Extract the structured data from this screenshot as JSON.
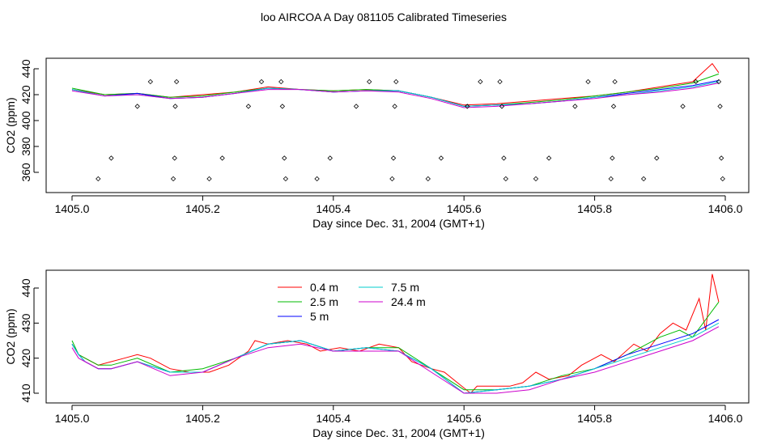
{
  "title": "loo AIRCOA A  Day 081105  Calibrated Timeseries",
  "colors": {
    "axis": "#000000",
    "series": [
      "#ff0000",
      "#00bb00",
      "#0000ff",
      "#00cccc",
      "#cc00cc"
    ]
  },
  "chart_data": [
    {
      "type": "line",
      "xlabel": "Day since Dec. 31, 2004 (GMT+1)",
      "ylabel": "CO2 (ppm)",
      "xlim": [
        1405.0,
        1406.0
      ],
      "ylim": [
        345,
        448
      ],
      "xticks": [
        "1405.0",
        "1405.2",
        "1405.4",
        "1405.6",
        "1405.8",
        "1406.0"
      ],
      "yticks": [
        "360",
        "380",
        "400",
        "420",
        "440"
      ],
      "series": [
        {
          "name": "0.4 m",
          "x": [
            1405.0,
            1405.05,
            1405.1,
            1405.15,
            1405.2,
            1405.25,
            1405.3,
            1405.35,
            1405.4,
            1405.45,
            1405.5,
            1405.55,
            1405.6,
            1405.65,
            1405.7,
            1405.75,
            1405.8,
            1405.85,
            1405.9,
            1405.95,
            1405.98,
            1405.99
          ],
          "y": [
            424,
            420,
            421,
            418,
            420,
            422,
            426,
            424,
            423,
            424,
            423,
            418,
            412,
            413,
            415,
            417,
            419,
            422,
            426,
            430,
            444,
            437
          ]
        },
        {
          "name": "2.5 m",
          "x": [
            1405.0,
            1405.05,
            1405.1,
            1405.15,
            1405.2,
            1405.25,
            1405.3,
            1405.35,
            1405.4,
            1405.45,
            1405.5,
            1405.55,
            1405.6,
            1405.65,
            1405.7,
            1405.75,
            1405.8,
            1405.85,
            1405.9,
            1405.95,
            1405.99
          ],
          "y": [
            425,
            420,
            421,
            418,
            419,
            422,
            425,
            424,
            423,
            424,
            423,
            418,
            411,
            412,
            414,
            416,
            419,
            422,
            425,
            429,
            436
          ]
        },
        {
          "name": "5 m",
          "x": [
            1405.0,
            1405.05,
            1405.1,
            1405.15,
            1405.2,
            1405.25,
            1405.3,
            1405.35,
            1405.4,
            1405.45,
            1405.5,
            1405.55,
            1405.6,
            1405.65,
            1405.7,
            1405.75,
            1405.8,
            1405.85,
            1405.9,
            1405.95,
            1405.99
          ],
          "y": [
            424,
            419,
            421,
            417,
            418,
            421,
            425,
            424,
            422,
            423,
            423,
            418,
            411,
            412,
            413,
            415,
            418,
            421,
            424,
            427,
            431
          ]
        },
        {
          "name": "7.5 m",
          "x": [
            1405.0,
            1405.05,
            1405.1,
            1405.15,
            1405.2,
            1405.25,
            1405.3,
            1405.35,
            1405.4,
            1405.45,
            1405.5,
            1405.55,
            1405.6,
            1405.65,
            1405.7,
            1405.75,
            1405.8,
            1405.85,
            1405.9,
            1405.95,
            1405.99
          ],
          "y": [
            424,
            419,
            420,
            417,
            418,
            421,
            425,
            424,
            422,
            423,
            423,
            418,
            411,
            412,
            413,
            415,
            418,
            420,
            423,
            426,
            430
          ]
        },
        {
          "name": "24.4 m",
          "x": [
            1405.0,
            1405.05,
            1405.1,
            1405.15,
            1405.2,
            1405.25,
            1405.3,
            1405.35,
            1405.4,
            1405.45,
            1405.5,
            1405.55,
            1405.6,
            1405.65,
            1405.7,
            1405.75,
            1405.8,
            1405.85,
            1405.9,
            1405.95,
            1405.99
          ],
          "y": [
            423,
            419,
            420,
            417,
            418,
            421,
            424,
            424,
            422,
            423,
            422,
            417,
            410,
            411,
            413,
            415,
            417,
            420,
            422,
            425,
            429
          ]
        }
      ],
      "scatter_points": [
        {
          "x": 1405.04,
          "y": 355
        },
        {
          "x": 1405.06,
          "y": 371
        },
        {
          "x": 1405.1,
          "y": 411
        },
        {
          "x": 1405.12,
          "y": 430
        },
        {
          "x": 1405.155,
          "y": 355
        },
        {
          "x": 1405.157,
          "y": 371
        },
        {
          "x": 1405.158,
          "y": 411
        },
        {
          "x": 1405.16,
          "y": 430
        },
        {
          "x": 1405.21,
          "y": 355
        },
        {
          "x": 1405.23,
          "y": 371
        },
        {
          "x": 1405.27,
          "y": 411
        },
        {
          "x": 1405.29,
          "y": 430
        },
        {
          "x": 1405.32,
          "y": 430
        },
        {
          "x": 1405.322,
          "y": 411
        },
        {
          "x": 1405.325,
          "y": 371
        },
        {
          "x": 1405.327,
          "y": 355
        },
        {
          "x": 1405.375,
          "y": 355
        },
        {
          "x": 1405.395,
          "y": 371
        },
        {
          "x": 1405.435,
          "y": 411
        },
        {
          "x": 1405.455,
          "y": 430
        },
        {
          "x": 1405.49,
          "y": 355
        },
        {
          "x": 1405.492,
          "y": 371
        },
        {
          "x": 1405.494,
          "y": 411
        },
        {
          "x": 1405.496,
          "y": 430
        },
        {
          "x": 1405.545,
          "y": 355
        },
        {
          "x": 1405.565,
          "y": 371
        },
        {
          "x": 1405.605,
          "y": 411
        },
        {
          "x": 1405.625,
          "y": 430
        },
        {
          "x": 1405.655,
          "y": 430
        },
        {
          "x": 1405.658,
          "y": 411
        },
        {
          "x": 1405.661,
          "y": 371
        },
        {
          "x": 1405.664,
          "y": 355
        },
        {
          "x": 1405.71,
          "y": 355
        },
        {
          "x": 1405.73,
          "y": 371
        },
        {
          "x": 1405.77,
          "y": 411
        },
        {
          "x": 1405.79,
          "y": 430
        },
        {
          "x": 1405.825,
          "y": 355
        },
        {
          "x": 1405.827,
          "y": 371
        },
        {
          "x": 1405.829,
          "y": 411
        },
        {
          "x": 1405.831,
          "y": 430
        },
        {
          "x": 1405.875,
          "y": 355
        },
        {
          "x": 1405.895,
          "y": 371
        },
        {
          "x": 1405.935,
          "y": 411
        },
        {
          "x": 1405.955,
          "y": 430
        },
        {
          "x": 1405.99,
          "y": 430
        },
        {
          "x": 1405.992,
          "y": 411
        },
        {
          "x": 1405.994,
          "y": 371
        },
        {
          "x": 1405.996,
          "y": 355
        }
      ]
    },
    {
      "type": "line",
      "xlabel": "Day since Dec. 31, 2004 (GMT+1)",
      "ylabel": "CO2 (ppm)",
      "xlim": [
        1405.0,
        1406.0
      ],
      "ylim": [
        408,
        446
      ],
      "xticks": [
        "1405.0",
        "1405.2",
        "1405.4",
        "1405.6",
        "1405.8",
        "1406.0"
      ],
      "yticks": [
        "410",
        "420",
        "430",
        "440"
      ],
      "legend": "top-center",
      "series": [
        {
          "name": "0.4 m",
          "x": [
            1405.0,
            1405.01,
            1405.02,
            1405.04,
            1405.06,
            1405.08,
            1405.1,
            1405.12,
            1405.15,
            1405.18,
            1405.21,
            1405.24,
            1405.27,
            1405.28,
            1405.3,
            1405.33,
            1405.36,
            1405.38,
            1405.41,
            1405.44,
            1405.47,
            1405.5,
            1405.52,
            1405.55,
            1405.57,
            1405.59,
            1405.61,
            1405.62,
            1405.64,
            1405.67,
            1405.69,
            1405.71,
            1405.73,
            1405.76,
            1405.78,
            1405.81,
            1405.83,
            1405.86,
            1405.88,
            1405.9,
            1405.92,
            1405.94,
            1405.96,
            1405.97,
            1405.98,
            1405.99
          ],
          "y": [
            424,
            421,
            420,
            418,
            419,
            420,
            421,
            420,
            417,
            416,
            416,
            418,
            422,
            425,
            424,
            425,
            424,
            422,
            423,
            422,
            424,
            423,
            419,
            417,
            416,
            413,
            410,
            412,
            412,
            412,
            413,
            416,
            414,
            415,
            418,
            421,
            419,
            424,
            422,
            427,
            430,
            428,
            437,
            428,
            444,
            436
          ]
        },
        {
          "name": "2.5 m",
          "x": [
            1405.0,
            1405.01,
            1405.02,
            1405.04,
            1405.06,
            1405.1,
            1405.15,
            1405.2,
            1405.25,
            1405.3,
            1405.35,
            1405.4,
            1405.45,
            1405.5,
            1405.55,
            1405.6,
            1405.65,
            1405.7,
            1405.75,
            1405.8,
            1405.85,
            1405.9,
            1405.93,
            1405.95,
            1405.97,
            1405.99
          ],
          "y": [
            425,
            421,
            420,
            418,
            418,
            420,
            416,
            417,
            420,
            424,
            425,
            422,
            423,
            423,
            417,
            411,
            411,
            412,
            415,
            417,
            421,
            426,
            428,
            426,
            431,
            436
          ]
        },
        {
          "name": "5 m",
          "x": [
            1405.0,
            1405.01,
            1405.02,
            1405.04,
            1405.06,
            1405.1,
            1405.15,
            1405.2,
            1405.25,
            1405.3,
            1405.35,
            1405.4,
            1405.45,
            1405.5,
            1405.55,
            1405.6,
            1405.65,
            1405.7,
            1405.75,
            1405.8,
            1405.85,
            1405.9,
            1405.95,
            1405.99
          ],
          "y": [
            424,
            421,
            419,
            417,
            417,
            419,
            416,
            416,
            420,
            424,
            425,
            422,
            423,
            422,
            417,
            410,
            411,
            412,
            414,
            417,
            421,
            424,
            427,
            431
          ]
        },
        {
          "name": "7.5 m",
          "x": [
            1405.0,
            1405.01,
            1405.02,
            1405.04,
            1405.06,
            1405.1,
            1405.15,
            1405.2,
            1405.25,
            1405.3,
            1405.35,
            1405.4,
            1405.45,
            1405.5,
            1405.55,
            1405.6,
            1405.65,
            1405.7,
            1405.75,
            1405.8,
            1405.85,
            1405.9,
            1405.95,
            1405.99
          ],
          "y": [
            424,
            421,
            419,
            417,
            417,
            419,
            416,
            416,
            420,
            424,
            425,
            422,
            423,
            422,
            417,
            410,
            411,
            412,
            414,
            417,
            420,
            423,
            426,
            430
          ]
        },
        {
          "name": "24.4 m",
          "x": [
            1405.0,
            1405.01,
            1405.02,
            1405.04,
            1405.06,
            1405.1,
            1405.15,
            1405.2,
            1405.25,
            1405.3,
            1405.35,
            1405.4,
            1405.45,
            1405.5,
            1405.55,
            1405.6,
            1405.65,
            1405.7,
            1405.75,
            1405.8,
            1405.85,
            1405.9,
            1405.95,
            1405.99
          ],
          "y": [
            423,
            420,
            419,
            417,
            417,
            419,
            415,
            416,
            420,
            423,
            424,
            422,
            422,
            422,
            416,
            410,
            410,
            411,
            414,
            416,
            419,
            422,
            425,
            429
          ]
        }
      ]
    }
  ]
}
